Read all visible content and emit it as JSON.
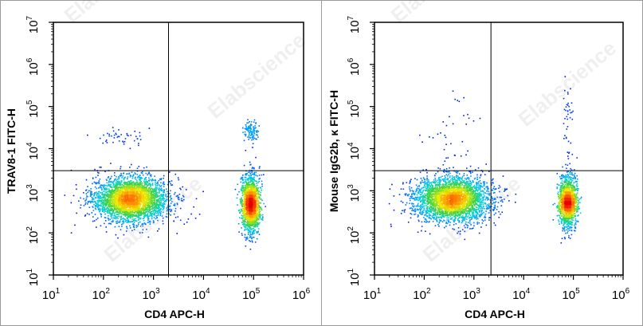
{
  "chart_data": [
    {
      "type": "scatter",
      "xlabel": "CD4 APC-H",
      "ylabel": "TRAV8-1 FITC-H",
      "x_scale": "log",
      "y_scale": "log",
      "xlim": [
        10,
        1000000
      ],
      "ylim": [
        10,
        10000000
      ],
      "x_ticks": [
        "1",
        "2",
        "3",
        "4",
        "5",
        "6"
      ],
      "y_ticks": [
        "1",
        "2",
        "3",
        "4",
        "5",
        "6",
        "7"
      ],
      "tick_base": "10",
      "gate": {
        "x": 2000,
        "y": 3000
      },
      "populations": [
        {
          "center_x": 350,
          "center_y": 650,
          "count": 3200,
          "log_spread_x": 0.38,
          "log_spread_y": 0.26
        },
        {
          "center_x": 85000,
          "center_y": 500,
          "count": 1700,
          "log_spread_x": 0.09,
          "log_spread_y": 0.33
        },
        {
          "center_x": 85000,
          "center_y": 28000,
          "count": 110,
          "log_spread_x": 0.07,
          "log_spread_y": 0.12
        },
        {
          "center_x": 250,
          "center_y": 20000,
          "count": 45,
          "log_spread_x": 0.3,
          "log_spread_y": 0.12
        }
      ]
    },
    {
      "type": "scatter",
      "xlabel": "CD4 APC-H",
      "ylabel": "Mouse IgG2b, κ FITC-H",
      "x_scale": "log",
      "y_scale": "log",
      "xlim": [
        10,
        1000000
      ],
      "ylim": [
        10,
        10000000
      ],
      "x_ticks": [
        "1",
        "2",
        "3",
        "4",
        "5",
        "6"
      ],
      "y_ticks": [
        "1",
        "2",
        "3",
        "4",
        "5",
        "6",
        "7"
      ],
      "tick_base": "10",
      "gate": {
        "x": 2200,
        "y": 3000
      },
      "populations": [
        {
          "center_x": 350,
          "center_y": 650,
          "count": 3200,
          "log_spread_x": 0.38,
          "log_spread_y": 0.26
        },
        {
          "center_x": 75000,
          "center_y": 550,
          "count": 1500,
          "log_spread_x": 0.09,
          "log_spread_y": 0.3
        },
        {
          "center_x": 75000,
          "center_y": 60000,
          "count": 40,
          "log_spread_x": 0.05,
          "log_spread_y": 0.55
        },
        {
          "center_x": 400,
          "center_y": 30000,
          "count": 35,
          "log_spread_x": 0.3,
          "log_spread_y": 0.55
        }
      ]
    }
  ],
  "watermark": "Elabscience"
}
